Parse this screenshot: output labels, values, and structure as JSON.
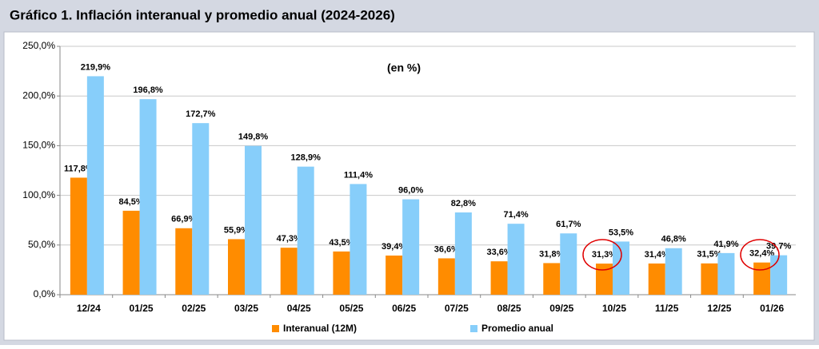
{
  "chart_data": {
    "type": "bar",
    "title": "Gráfico 1. Inflación interanual y promedio anual (2024-2026)",
    "annotation": "(en %)",
    "categories": [
      "12/24",
      "01/25",
      "02/25",
      "03/25",
      "04/25",
      "05/25",
      "06/25",
      "07/25",
      "08/25",
      "09/25",
      "10/25",
      "11/25",
      "12/25",
      "01/26"
    ],
    "series": [
      {
        "name": "Interanual (12M)",
        "color": "#ff8c00",
        "values": [
          117.8,
          84.5,
          66.9,
          55.9,
          47.3,
          43.5,
          39.4,
          36.6,
          33.6,
          31.8,
          31.3,
          31.4,
          31.5,
          32.4
        ],
        "value_labels": [
          "117,8%",
          "84,5%",
          "66,9%",
          "55,9%",
          "47,3%",
          "43,5%",
          "39,4%",
          "36,6%",
          "33,6%",
          "31,8%",
          "31,3%",
          "31,4%",
          "31,5%",
          "32,4%"
        ]
      },
      {
        "name": "Promedio anual",
        "color": "#87cefa",
        "values": [
          219.9,
          196.8,
          172.7,
          149.8,
          128.9,
          111.4,
          96.0,
          82.8,
          71.4,
          61.7,
          53.5,
          46.8,
          41.9,
          39.7
        ],
        "value_labels": [
          "219,9%",
          "196,8%",
          "172,7%",
          "149,8%",
          "128,9%",
          "111,4%",
          "96,0%",
          "82,8%",
          "71,4%",
          "61,7%",
          "53,5%",
          "46,8%",
          "41,9%",
          "39,7%"
        ]
      }
    ],
    "ylim": [
      0,
      250
    ],
    "yticks": [
      {
        "value": 0,
        "label": "0,0%"
      },
      {
        "value": 50,
        "label": "50,0%"
      },
      {
        "value": 100,
        "label": "100,0%"
      },
      {
        "value": 150,
        "label": "150,0%"
      },
      {
        "value": 200,
        "label": "200,0%"
      },
      {
        "value": 250,
        "label": "250,0%"
      }
    ],
    "grid": true,
    "legend": "bottom"
  }
}
